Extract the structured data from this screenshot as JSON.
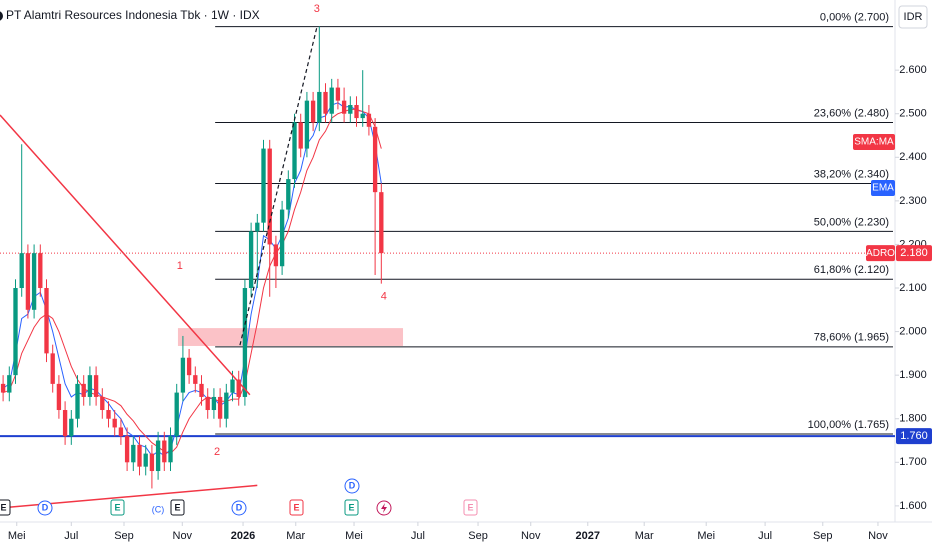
{
  "chart_data": {
    "type": "candlestick",
    "title": "PT Alamtri Resources Indonesia Tbk · 1W · IDX",
    "currency": "IDR",
    "up_color": "#089981",
    "down_color": "#f23645",
    "open": [
      1880,
      1860,
      1900,
      2100,
      2180,
      2050,
      2180,
      2100,
      1950,
      1880,
      1820,
      1760,
      1800,
      1880,
      1850,
      1900,
      1850,
      1820,
      1800,
      1780,
      1760,
      1700,
      1740,
      1690,
      1720,
      1680,
      1750,
      1700,
      1760,
      1860,
      1940,
      1900,
      1880,
      1850,
      1820,
      1850,
      1800,
      1860,
      1890,
      1850,
      2100,
      2230,
      2250,
      2420,
      2200,
      2150,
      2280,
      2350,
      2480,
      2420,
      2530,
      2480,
      2550,
      2500,
      2560,
      2530,
      2500,
      2520,
      2490,
      2500,
      2470,
      2320
    ],
    "high": [
      1900,
      1920,
      2120,
      2430,
      2200,
      2200,
      2200,
      2120,
      1970,
      1900,
      1840,
      1820,
      1900,
      1900,
      1920,
      1920,
      1870,
      1840,
      1820,
      1800,
      1780,
      1760,
      1760,
      1740,
      1740,
      1770,
      1770,
      1780,
      1880,
      1990,
      1960,
      1920,
      1900,
      1870,
      1870,
      1870,
      1880,
      1910,
      1910,
      2120,
      2250,
      2270,
      2440,
      2440,
      2220,
      2300,
      2370,
      2500,
      2500,
      2550,
      2550,
      2700,
      2570,
      2580,
      2580,
      2560,
      2540,
      2540,
      2600,
      2520,
      2490,
      2340
    ],
    "low": [
      1840,
      1840,
      1880,
      2080,
      2030,
      2030,
      2080,
      1930,
      1860,
      1800,
      1740,
      1740,
      1780,
      1830,
      1830,
      1830,
      1800,
      1780,
      1760,
      1740,
      1680,
      1680,
      1670,
      1670,
      1640,
      1660,
      1680,
      1680,
      1740,
      1840,
      1880,
      1860,
      1830,
      1800,
      1800,
      1780,
      1780,
      1840,
      1830,
      1830,
      2080,
      2100,
      2230,
      2080,
      2100,
      2130,
      2260,
      2330,
      2400,
      2400,
      2460,
      2460,
      2480,
      2480,
      2510,
      2480,
      2480,
      2470,
      2470,
      2450,
      2130,
      2110
    ],
    "close": [
      1860,
      1900,
      2100,
      2180,
      2050,
      2180,
      2100,
      1950,
      1880,
      1820,
      1760,
      1800,
      1880,
      1850,
      1900,
      1850,
      1820,
      1800,
      1780,
      1760,
      1700,
      1740,
      1690,
      1720,
      1680,
      1750,
      1700,
      1760,
      1860,
      1940,
      1900,
      1880,
      1850,
      1820,
      1850,
      1800,
      1860,
      1890,
      1850,
      2100,
      2230,
      2250,
      2420,
      2200,
      2150,
      2280,
      2350,
      2480,
      2420,
      2530,
      2480,
      2550,
      2500,
      2560,
      2530,
      2500,
      2520,
      2490,
      2500,
      2470,
      2320,
      2180
    ],
    "series": [
      {
        "name": "EMA",
        "color": "#2962ff",
        "values": [
          1870,
          1880,
          1950,
          2030,
          2040,
          2080,
          2090,
          2050,
          2000,
          1940,
          1880,
          1850,
          1860,
          1855,
          1870,
          1865,
          1850,
          1835,
          1815,
          1800,
          1770,
          1760,
          1740,
          1735,
          1715,
          1725,
          1715,
          1730,
          1780,
          1840,
          1860,
          1865,
          1860,
          1845,
          1848,
          1830,
          1840,
          1860,
          1855,
          1940,
          2040,
          2110,
          2220,
          2210,
          2190,
          2220,
          2260,
          2340,
          2370,
          2430,
          2450,
          2490,
          2495,
          2520,
          2525,
          2515,
          2517,
          2508,
          2505,
          2490,
          2430,
          2340
        ]
      },
      {
        "name": "SMA:MA",
        "color": "#f23645",
        "values": [
          1860,
          1865,
          1900,
          1950,
          1980,
          2010,
          2030,
          2040,
          2030,
          2000,
          1960,
          1920,
          1890,
          1870,
          1860,
          1855,
          1850,
          1845,
          1840,
          1830,
          1810,
          1795,
          1775,
          1760,
          1745,
          1735,
          1725,
          1720,
          1735,
          1770,
          1800,
          1820,
          1840,
          1850,
          1845,
          1840,
          1840,
          1845,
          1845,
          1880,
          1950,
          2020,
          2100,
          2150,
          2180,
          2200,
          2230,
          2280,
          2320,
          2370,
          2400,
          2440,
          2460,
          2490,
          2500,
          2505,
          2510,
          2510,
          2505,
          2500,
          2470,
          2420
        ]
      }
    ],
    "ylim": [
      1563,
      2761
    ],
    "yticks": [
      {
        "value": 1600,
        "label": "1.600"
      },
      {
        "value": 1700,
        "label": "1.700"
      },
      {
        "value": 1800,
        "label": "1.800"
      },
      {
        "value": 1900,
        "label": "1.900"
      },
      {
        "value": 2000,
        "label": "2.000"
      },
      {
        "value": 2100,
        "label": "2.100"
      },
      {
        "value": 2200,
        "label": "2.200"
      },
      {
        "value": 2300,
        "label": "2.300"
      },
      {
        "value": 2400,
        "label": "2.400"
      },
      {
        "value": 2500,
        "label": "2.500"
      },
      {
        "value": 2600,
        "label": "2.600"
      }
    ],
    "xlim": [
      -0.5,
      143.85
    ],
    "xticks": [
      {
        "value": 2.2,
        "label": "Mei"
      },
      {
        "value": 11,
        "label": "Jul"
      },
      {
        "value": 19.5,
        "label": "Sep"
      },
      {
        "value": 28.9,
        "label": "Nov"
      },
      {
        "value": 38.7,
        "label": "2026"
      },
      {
        "value": 47.2,
        "label": "Mar"
      },
      {
        "value": 56.6,
        "label": "Mei"
      },
      {
        "value": 66.9,
        "label": "Jul"
      },
      {
        "value": 76.6,
        "label": "Sep"
      },
      {
        "value": 85.1,
        "label": "Nov"
      },
      {
        "value": 94.3,
        "label": "2027"
      },
      {
        "value": 103.4,
        "label": "Mar"
      },
      {
        "value": 113.4,
        "label": "Mei"
      },
      {
        "value": 122.9,
        "label": "Jul"
      },
      {
        "value": 132.2,
        "label": "Sep"
      },
      {
        "value": 141.1,
        "label": "Nov"
      }
    ],
    "last_price": {
      "symbol": "ADRO",
      "value": 2180,
      "label": "2.180"
    },
    "support_line": {
      "value": 1760,
      "label": "1.760",
      "color": "#1e3fcf"
    },
    "fib_start": 34.2,
    "fib_levels": [
      {
        "price": 2700,
        "label": "0,00% (2.700)"
      },
      {
        "price": 2480,
        "label": "23,60% (2.480)"
      },
      {
        "price": 2340,
        "label": "38,20% (2.340)"
      },
      {
        "price": 2230,
        "label": "50,00% (2.230)"
      },
      {
        "price": 2120,
        "label": "61,80% (2.120)"
      },
      {
        "price": 1965,
        "label": "78,60% (1.965)"
      },
      {
        "price": 1765,
        "label": "100,00% (1.765)"
      }
    ],
    "zone": {
      "x": [
        28.2,
        64.5
      ],
      "y": [
        1967,
        2008
      ]
    },
    "trendlines": [
      {
        "color": "#f23645",
        "x": [
          -0.5,
          39.8
        ],
        "y": [
          2497,
          1855
        ]
      },
      {
        "color": "#f23645",
        "x": [
          -0.5,
          41
        ],
        "y": [
          1595,
          1647
        ]
      },
      {
        "color": "#131722",
        "dashed": true,
        "x": [
          38.2,
          50.6
        ],
        "y": [
          1969,
          2698
        ]
      }
    ],
    "annotations": [
      {
        "text": "1",
        "x": 28.5,
        "y": 2150
      },
      {
        "text": "2",
        "x": 34.5,
        "y": 1724
      },
      {
        "text": "3",
        "x": 50.6,
        "y": 2740
      },
      {
        "text": "4",
        "x": 61.4,
        "y": 2080
      }
    ],
    "events": [
      "E",
      "D",
      "E",
      "(C)",
      "E",
      "D",
      "E",
      "D",
      "E",
      "E"
    ]
  }
}
